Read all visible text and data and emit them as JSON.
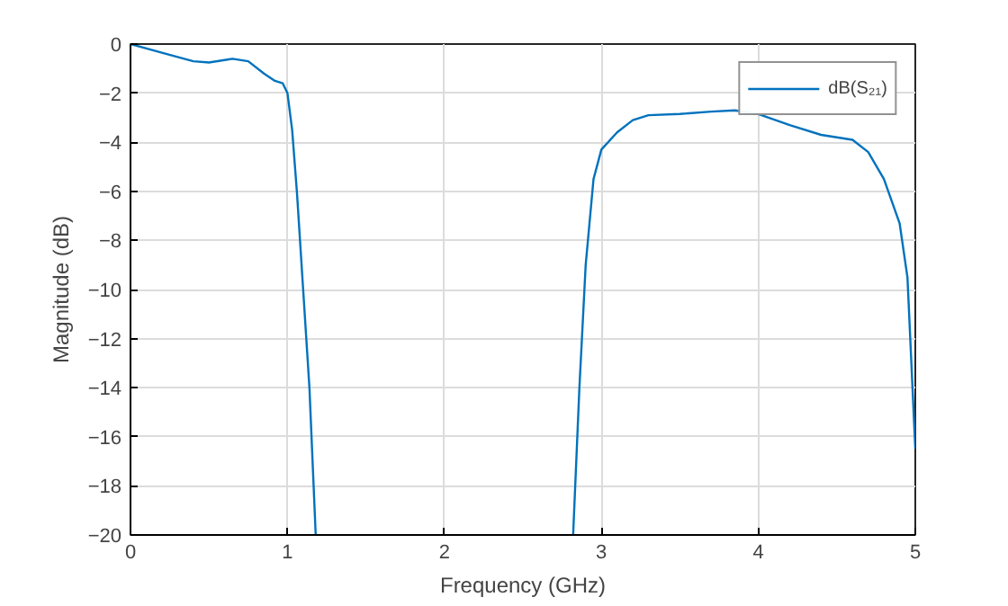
{
  "chart_data": {
    "type": "line",
    "xlabel": "Frequency (GHz)",
    "ylabel": "Magnitude (dB)",
    "x": [
      0,
      0.2,
      0.4,
      0.5,
      0.65,
      0.75,
      0.85,
      0.92,
      0.97,
      1.0,
      1.03,
      1.06,
      1.1,
      1.14,
      1.18,
      2.0,
      2.82,
      2.86,
      2.9,
      2.95,
      3.0,
      3.1,
      3.2,
      3.3,
      3.5,
      3.7,
      3.85,
      4.0,
      4.2,
      4.4,
      4.6,
      4.7,
      4.8,
      4.9,
      4.95,
      5.0
    ],
    "series": [
      {
        "name": "dB(S₂₁)",
        "color": "#0072bd",
        "values": [
          0,
          -0.35,
          -0.7,
          -0.75,
          -0.6,
          -0.7,
          -1.2,
          -1.5,
          -1.6,
          -2.0,
          -3.5,
          -6,
          -10,
          -14,
          -20,
          null,
          -20,
          -14,
          -9,
          -5.5,
          -4.3,
          -3.6,
          -3.1,
          -2.9,
          -2.85,
          -2.75,
          -2.7,
          -2.85,
          -3.3,
          -3.7,
          -3.9,
          -4.4,
          -5.5,
          -7.3,
          -9.5,
          -16.5
        ]
      }
    ],
    "xlim": [
      0,
      5
    ],
    "ylim": [
      -20,
      0
    ],
    "xticks": [
      0,
      1,
      2,
      3,
      4,
      5
    ],
    "yticks": [
      -20,
      -18,
      -16,
      -14,
      -12,
      -10,
      -8,
      -6,
      -4,
      -2,
      0
    ],
    "grid": true,
    "legend": "top right",
    "line_style": "solid",
    "marker": "none"
  }
}
